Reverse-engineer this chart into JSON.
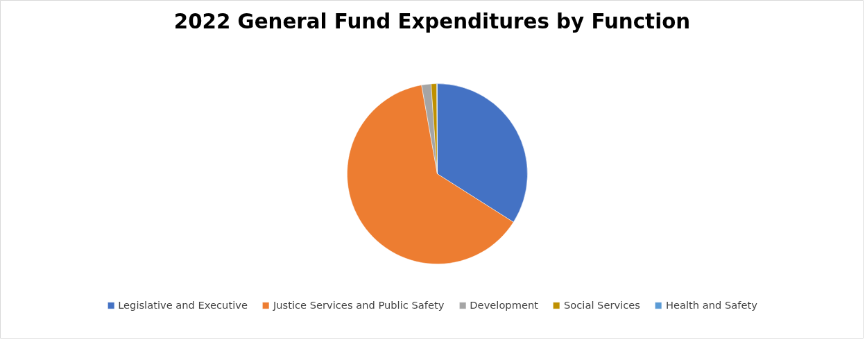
{
  "chart_data": {
    "type": "pie",
    "title": "2022 General Fund Expenditures by Function",
    "categories": [
      "Legislative and Executive",
      "Justice Services and Public Safety",
      "Development",
      "Social Services",
      "Health and Safety"
    ],
    "values": [
      34.0,
      63.2,
      1.7,
      1.0,
      0.1
    ],
    "colors": [
      "#4472c4",
      "#ed7d31",
      "#a5a5a5",
      "#bf9000",
      "#5b9bd5"
    ],
    "legend": "bottom"
  }
}
